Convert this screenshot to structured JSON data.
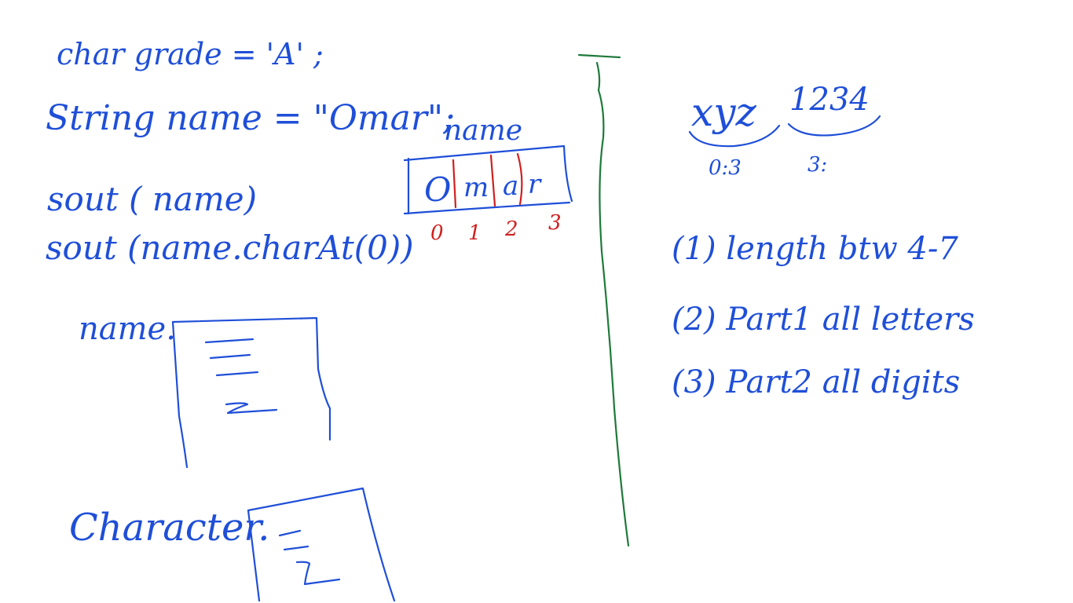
{
  "code": {
    "line1": "char grade = 'A' ;",
    "line2": "String name = \"Omar\";",
    "line3": "sout ( name)",
    "line4": "sout (name.charAt(0))"
  },
  "popups": {
    "name_label": "name.",
    "character_label": "Character."
  },
  "string_array": {
    "title": "name",
    "cells": [
      "O",
      "m",
      "a",
      "r"
    ],
    "indices": [
      "0",
      "1",
      "2",
      "3"
    ]
  },
  "example": {
    "letters": "xyz",
    "digits": "1234",
    "part1_range": "0:3",
    "part2_range": "3:"
  },
  "rules": [
    "(1) length btw 4-7",
    "(2) Part1 all letters",
    "(3) Part2 all digits"
  ],
  "colors": {
    "blue_ink": "#1f4fd8",
    "red_ink": "#d01f1f",
    "green_ink": "#1f7a3a"
  }
}
